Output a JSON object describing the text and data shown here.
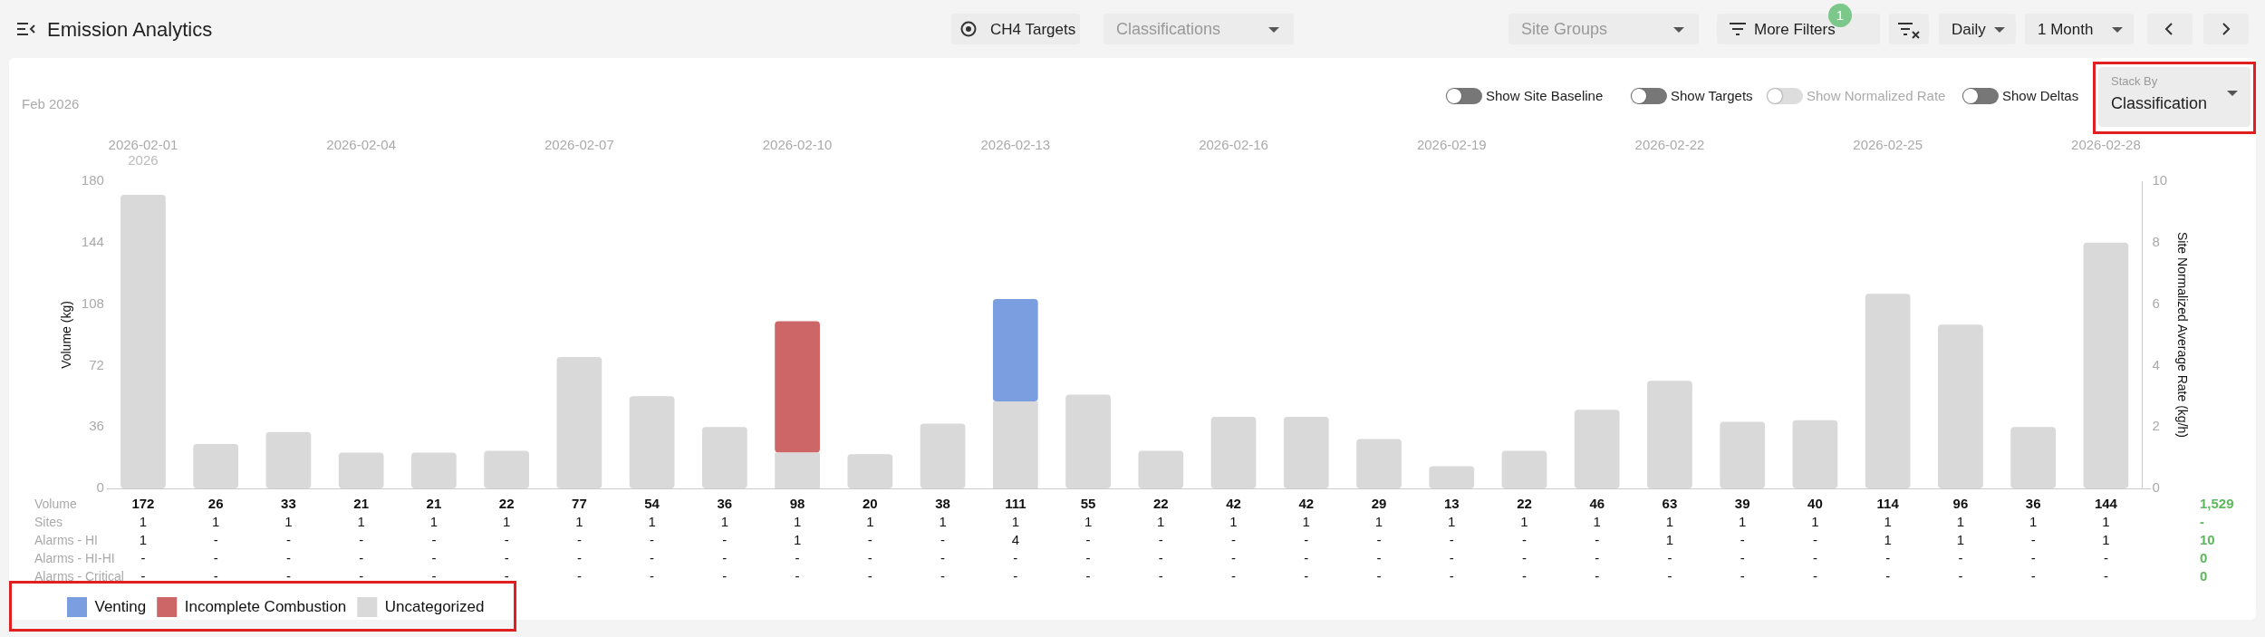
{
  "chart_data": {
    "type": "bar",
    "title": "Emission Analytics",
    "subtitle": "Feb 2026",
    "categories": [
      "2026-02-01",
      null,
      null,
      "2026-02-04",
      null,
      null,
      "2026-02-07",
      null,
      null,
      "2026-02-10",
      null,
      null,
      "2026-02-13",
      null,
      null,
      "2026-02-16",
      null,
      null,
      "2026-02-19",
      null,
      null,
      "2026-02-22",
      null,
      null,
      "2026-02-25",
      null,
      null,
      "2026-02-28"
    ],
    "stacked": true,
    "series": [
      {
        "name": "Uncategorized",
        "color": "#d9d9d9",
        "values": [
          172,
          26,
          33,
          21,
          21,
          22,
          77,
          54,
          36,
          21,
          20,
          38,
          51,
          55,
          22,
          42,
          42,
          29,
          13,
          22,
          46,
          63,
          39,
          40,
          114,
          96,
          36,
          144
        ]
      },
      {
        "name": "Incomplete Combustion",
        "color": "#cd6666",
        "values": [
          null,
          null,
          null,
          null,
          null,
          null,
          null,
          null,
          null,
          77,
          null,
          null,
          null,
          null,
          null,
          null,
          null,
          null,
          null,
          null,
          null,
          null,
          null,
          null,
          null,
          null,
          null,
          null
        ]
      },
      {
        "name": "Venting",
        "color": "#7b9ee0",
        "values": [
          null,
          null,
          null,
          null,
          null,
          null,
          null,
          null,
          null,
          null,
          null,
          null,
          60,
          null,
          null,
          null,
          null,
          null,
          null,
          null,
          null,
          null,
          null,
          null,
          null,
          null,
          null,
          null
        ]
      }
    ],
    "totals": [
      "172",
      "26",
      "33",
      "21",
      "21",
      "22",
      "77",
      "54",
      "36",
      "98",
      "20",
      "38",
      "111",
      "55",
      "22",
      "42",
      "42",
      "29",
      "13",
      "22",
      "46",
      "63",
      "39",
      "40",
      "114",
      "96",
      "36",
      "144"
    ],
    "ylabel": "Volume (kg)",
    "ylim": [
      0,
      180
    ],
    "yticks": [
      0,
      36,
      72,
      108,
      144,
      180
    ],
    "y2label": "Site Normalized Average Rate (kg/h)",
    "y2lim": [
      0,
      10
    ],
    "y2ticks": [
      0,
      2,
      4,
      6,
      8,
      10
    ],
    "grid": false,
    "legend": "bottom left",
    "annotations": [
      "2026",
      "Volume",
      "1,529",
      "Sites",
      "1",
      "1",
      "1",
      "1",
      "1",
      "1",
      "1",
      "1",
      "1",
      "1",
      "1",
      "1",
      "1",
      "1",
      "1",
      "1",
      "1",
      "1",
      "1",
      "1",
      "1",
      "1",
      "1",
      "1",
      "1",
      "1",
      "1",
      "1",
      "-",
      "Alarms - HI",
      "1",
      "-",
      "-",
      "-",
      "-",
      "-",
      "-",
      "-",
      "-",
      "1",
      "-",
      "-",
      "4",
      "-",
      "-",
      "-",
      "-",
      "-",
      "-",
      "-",
      "-",
      "1",
      "-",
      "-",
      "1",
      "1",
      "-",
      "1",
      "10",
      "Alarms - HI-HI",
      "-",
      "-",
      "-",
      "-",
      "-",
      "-",
      "-",
      "-",
      "-",
      "-",
      "-",
      "-",
      "-",
      "-",
      "-",
      "-",
      "-",
      "-",
      "-",
      "-",
      "-",
      "-",
      "-",
      "-",
      "-",
      "-",
      "-",
      "-",
      "0",
      "Alarms - Critical",
      "-",
      "-",
      "-",
      "-",
      "-",
      "-",
      "-",
      "-",
      "-",
      "-",
      "-",
      "-",
      "-",
      "-",
      "-",
      "-",
      "-",
      "-",
      "-",
      "-",
      "-",
      "-",
      "-",
      "-",
      "-",
      "-",
      "-",
      "-",
      "0",
      "CH4 Targets",
      "Classifications",
      "Site Groups",
      "More Filters",
      "1",
      "Daily",
      "1 Month",
      "Show Site Baseline",
      "Show Targets",
      "Show Normalized Rate",
      "Show Deltas",
      "Stack By",
      "Classification"
    ]
  }
}
